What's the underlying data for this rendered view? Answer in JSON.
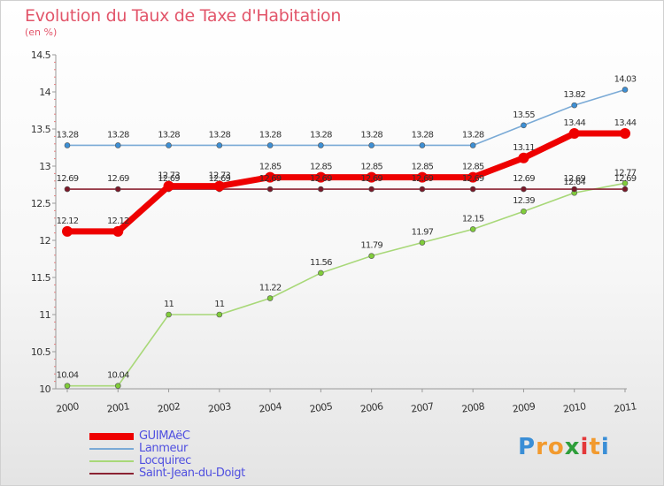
{
  "header": {
    "title": "Evolution du Taux de Taxe d'Habitation",
    "unit": "(en %)"
  },
  "brand": {
    "letters": [
      "P",
      "r",
      "o",
      "x",
      "i",
      "t",
      "i"
    ],
    "colors": [
      "#3a8ed6",
      "#f29a2e",
      "#f29a2e",
      "#2e9e3a",
      "#e3383a",
      "#f29a2e",
      "#3a8ed6"
    ]
  },
  "chart_data": {
    "type": "line",
    "x": [
      "2000",
      "2001",
      "2002",
      "2003",
      "2004",
      "2005",
      "2006",
      "2007",
      "2008",
      "2009",
      "2010",
      "2011"
    ],
    "ylim": [
      10,
      14.5
    ],
    "yticks": [
      "10",
      "10.5",
      "11",
      "11.5",
      "12",
      "12.5",
      "13",
      "13.5",
      "14",
      "14.5"
    ],
    "grid": false,
    "legend_position": "bottom-left",
    "series": [
      {
        "name": "GUIMAëC",
        "color": "#ee0000",
        "values": [
          12.12,
          12.12,
          12.73,
          12.73,
          12.85,
          12.85,
          12.85,
          12.85,
          12.85,
          13.11,
          13.44,
          13.44
        ],
        "labels": [
          "12.12",
          "12.12",
          "12.73",
          "12.73",
          "12.85",
          "12.85",
          "12.85",
          "12.85",
          "12.85",
          "13.11",
          "13.44",
          "13.44"
        ]
      },
      {
        "name": "Lanmeur",
        "color": "#7aaad6",
        "values": [
          13.28,
          13.28,
          13.28,
          13.28,
          13.28,
          13.28,
          13.28,
          13.28,
          13.28,
          13.55,
          13.82,
          14.03
        ],
        "labels": [
          "13.28",
          "13.28",
          "13.28",
          "13.28",
          "13.28",
          "13.28",
          "13.28",
          "13.28",
          "13.28",
          "13.55",
          "13.82",
          "14.03"
        ]
      },
      {
        "name": "Locquirec",
        "color": "#a8d878",
        "values": [
          10.04,
          10.04,
          11,
          11,
          11.22,
          11.56,
          11.79,
          11.97,
          12.15,
          12.39,
          12.64,
          12.77
        ],
        "labels": [
          "10.04",
          "10.04",
          "11",
          "11",
          "11.22",
          "11.56",
          "11.79",
          "11.97",
          "12.15",
          "12.39",
          "12.64",
          "12.77"
        ]
      },
      {
        "name": "Saint-Jean-du-Doigt",
        "color": "#8b2232",
        "values": [
          12.69,
          12.69,
          12.69,
          12.69,
          12.69,
          12.69,
          12.69,
          12.69,
          12.69,
          12.69,
          12.69,
          12.69
        ],
        "labels": [
          "12.69",
          "12.69",
          "12.69",
          "12.69",
          "12.69",
          "12.69",
          "12.69",
          "12.69",
          "12.69",
          "12.69",
          "12.69",
          "12.69"
        ]
      }
    ]
  }
}
